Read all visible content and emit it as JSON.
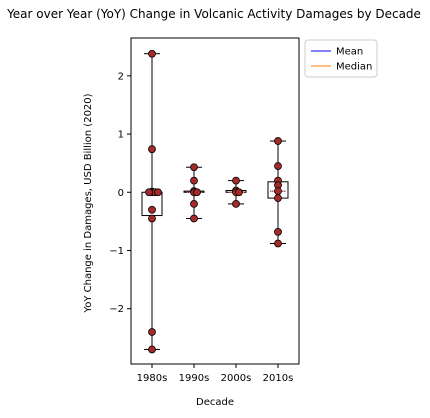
{
  "chart_data": {
    "type": "box",
    "title": "Year over Year (YoY) Change in Volcanic Activity Damages by Decade",
    "xlabel": "Decade",
    "ylabel": "YoY Change in Damages, USD Billion (2020)",
    "categories": [
      "1980s",
      "1990s",
      "2000s",
      "2010s"
    ],
    "ylim": [
      -2.95,
      2.65
    ],
    "yticks": [
      -2,
      -1,
      0,
      1,
      2
    ],
    "grid": false,
    "legend": {
      "placement": "outside-top-right",
      "entries": [
        {
          "label": "Mean",
          "color": "#0000ff"
        },
        {
          "label": "Median",
          "color": "#ff7f0e"
        }
      ]
    },
    "boxes": [
      {
        "category": "1980s",
        "whisker_low": -2.7,
        "q1": -0.4,
        "median": 0.0,
        "mean": 0.0,
        "q3": 0.0,
        "whisker_high": 2.38
      },
      {
        "category": "1990s",
        "whisker_low": -0.45,
        "q1": 0.0,
        "median": 0.0,
        "mean": 0.0,
        "q3": 0.02,
        "whisker_high": 0.43
      },
      {
        "category": "2000s",
        "whisker_low": -0.2,
        "q1": 0.0,
        "median": 0.0,
        "mean": 0.0,
        "q3": 0.03,
        "whisker_high": 0.2
      },
      {
        "category": "2010s",
        "whisker_low": -0.88,
        "q1": -0.1,
        "median": 0.02,
        "mean": 0.02,
        "q3": 0.18,
        "whisker_high": 0.88
      }
    ],
    "points": [
      {
        "category": "1980s",
        "values": [
          2.38,
          0.74,
          0.01,
          0.0,
          0.0,
          0.0,
          0.0,
          -0.3,
          -0.45,
          -2.4,
          -2.7
        ]
      },
      {
        "category": "1990s",
        "values": [
          0.43,
          0.2,
          0.02,
          0.0,
          0.0,
          -0.2,
          -0.45
        ]
      },
      {
        "category": "2000s",
        "values": [
          0.2,
          0.03,
          0.0,
          0.0,
          -0.2
        ]
      },
      {
        "category": "2010s",
        "values": [
          0.88,
          0.45,
          0.2,
          0.12,
          0.02,
          -0.1,
          -0.68,
          -0.88
        ]
      }
    ],
    "colors": {
      "point_fill": "#a52a2a",
      "point_edge": "#000000",
      "box": "#000000",
      "mean": "#0000ff",
      "median": "#ff7f0e"
    }
  }
}
